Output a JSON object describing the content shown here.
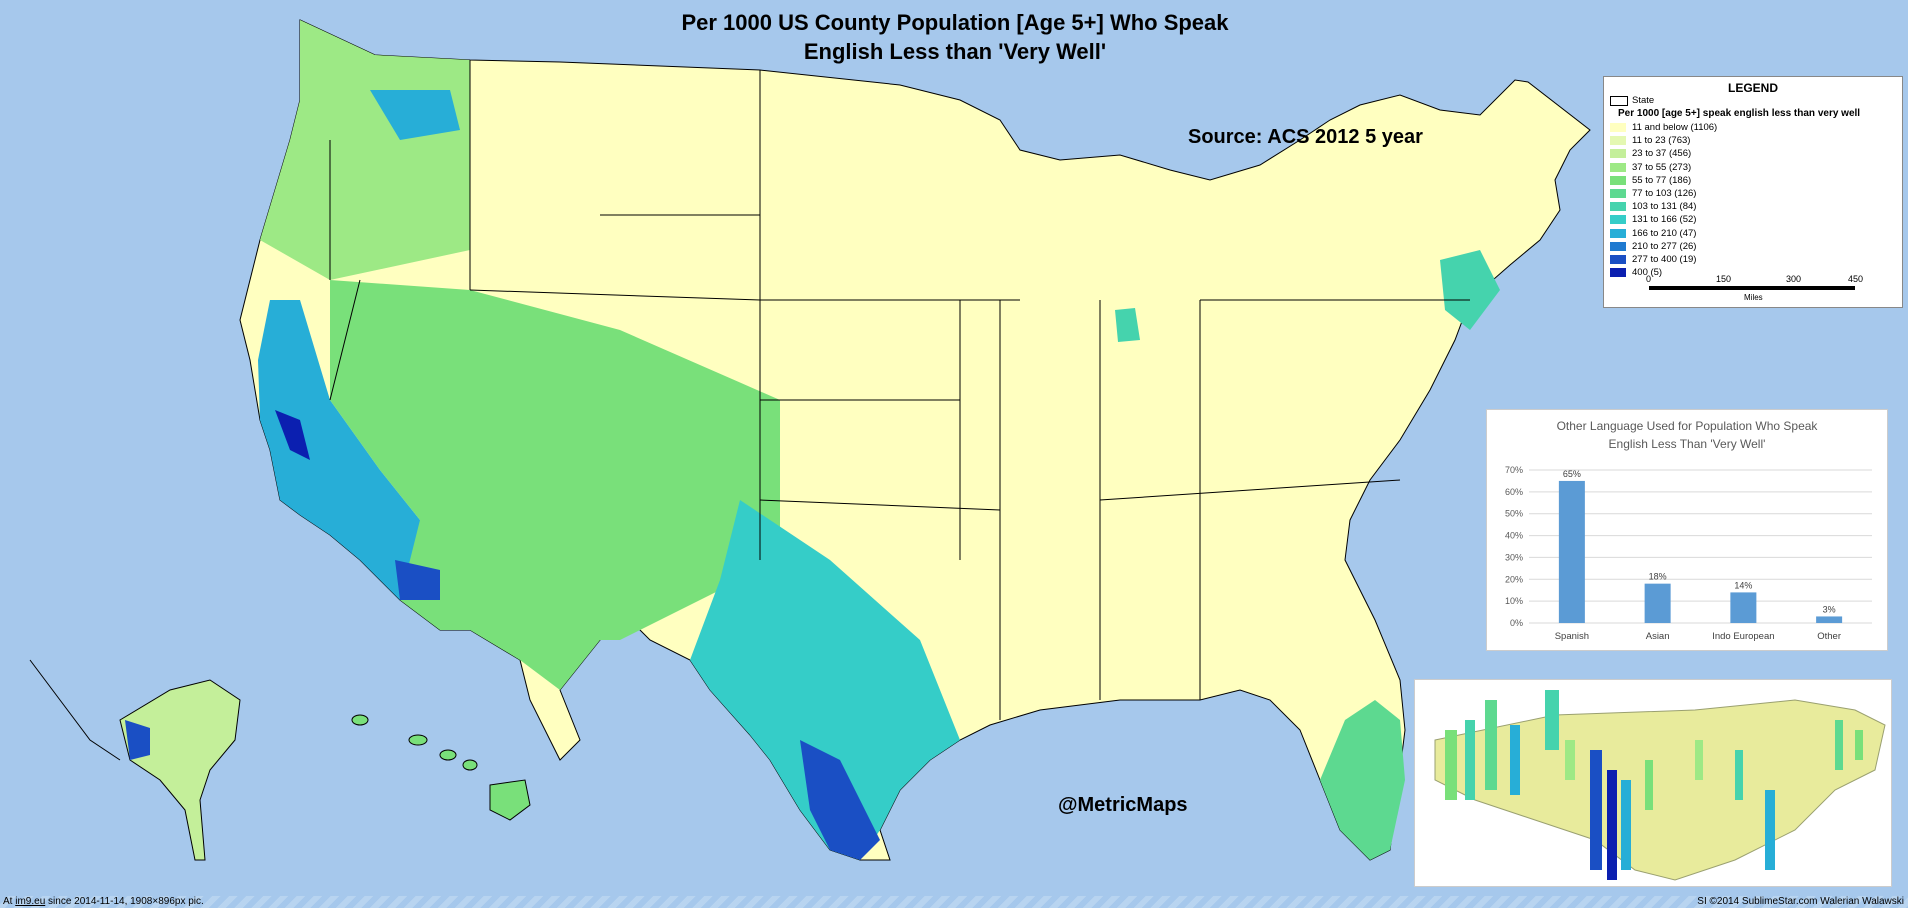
{
  "title": {
    "line1": "Per 1000 US County Population [Age 5+] Who Speak",
    "line2": "English Less than 'Very Well'"
  },
  "source": "Source: ACS 2012 5 year",
  "handle": "@MetricMaps",
  "legend": {
    "title": "LEGEND",
    "state_label": "State",
    "subtitle": "Per 1000 [age 5+] speak english less than very well",
    "items": [
      {
        "label": "11 and below (1106)",
        "color": "#ffffc0"
      },
      {
        "label": "11 to 23 (763)",
        "color": "#e4f8b2"
      },
      {
        "label": "23 to 37 (456)",
        "color": "#c4ef9a"
      },
      {
        "label": "37 to 55 (273)",
        "color": "#9de985"
      },
      {
        "label": "55 to 77 (186)",
        "color": "#79e07a"
      },
      {
        "label": "77 to 103 (126)",
        "color": "#5dd990"
      },
      {
        "label": "103 to 131 (84)",
        "color": "#45d3ad"
      },
      {
        "label": "131 to 166 (52)",
        "color": "#35cdc8"
      },
      {
        "label": "166 to 210 (47)",
        "color": "#27aed7"
      },
      {
        "label": "210 to 277 (26)",
        "color": "#1f7ad0"
      },
      {
        "label": "277 to 400 (19)",
        "color": "#1a4fc4"
      },
      {
        "label": "400 (5)",
        "color": "#0b1fb0"
      }
    ],
    "scale_ticks": [
      "0",
      "150",
      "300",
      "450"
    ],
    "scale_unit": "Miles"
  },
  "colors": {
    "water": "#a6c8ec",
    "land_low": "#ffffc0",
    "border": "#000000",
    "bar": "#5b9bd5"
  },
  "chart_data": {
    "type": "bar",
    "title": "Other Language Used for Population Who Speak English Less Than 'Very Well'",
    "title_line1": "Other Language Used for Population Who Speak",
    "title_line2": "English Less Than 'Very Well'",
    "categories": [
      "Spanish",
      "Asian",
      "Indo European",
      "Other"
    ],
    "values": [
      65,
      18,
      14,
      3
    ],
    "value_labels": [
      "65%",
      "18%",
      "14%",
      "3%"
    ],
    "ylim": [
      0,
      70
    ],
    "yticks": [
      "0%",
      "10%",
      "20%",
      "30%",
      "40%",
      "50%",
      "60%",
      "70%"
    ],
    "grid": true
  },
  "footer": {
    "left_prefix": "At",
    "left_link": "im9.eu",
    "left_suffix": "since 2014-11-14, 1908×896px pic.",
    "right": "SI ©2014 SublimeStar.com Walerian Walawski"
  }
}
